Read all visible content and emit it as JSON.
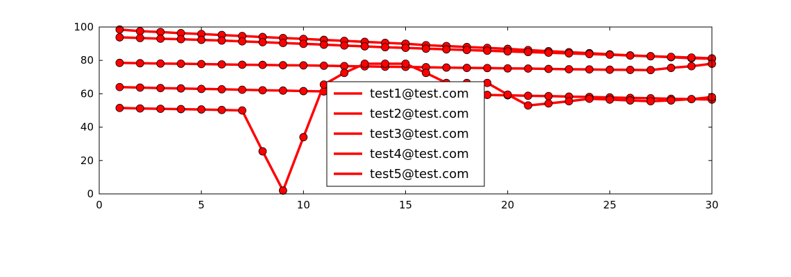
{
  "chart_data": {
    "type": "line",
    "title": "",
    "xlabel": "",
    "ylabel": "",
    "xlim": [
      0,
      30
    ],
    "ylim": [
      0,
      100
    ],
    "xticks": [
      0,
      5,
      10,
      15,
      20,
      25,
      30
    ],
    "yticks": [
      0,
      20,
      40,
      60,
      80,
      100
    ],
    "grid": false,
    "legend_position": "center",
    "line_color": "#ff0000",
    "marker_color": "#ff0000",
    "marker_edge_color": "#000000",
    "x": [
      1,
      2,
      3,
      4,
      5,
      6,
      7,
      8,
      9,
      10,
      11,
      12,
      13,
      14,
      15,
      16,
      17,
      18,
      19,
      20,
      21,
      22,
      23,
      24,
      25,
      26,
      27,
      28,
      29,
      30
    ],
    "series": [
      {
        "name": "test1@test.com",
        "values": [
          98.5,
          97.5,
          97,
          96.3,
          95.8,
          95.2,
          94.6,
          94,
          93.4,
          92.9,
          92.3,
          91.7,
          91.1,
          90.5,
          90,
          89.1,
          88.6,
          88,
          87.5,
          86.9,
          86.2,
          85.5,
          84.9,
          84.3,
          83.6,
          83,
          82.5,
          81.9,
          81.3,
          81
        ]
      },
      {
        "name": "test2@test.com",
        "values": [
          93.8,
          93.4,
          93,
          92.7,
          92.3,
          91.9,
          91.4,
          90.9,
          90.4,
          89.9,
          89.4,
          88.9,
          88.4,
          87.9,
          87.5,
          87,
          86.6,
          86.2,
          85.8,
          85.4,
          85,
          84.6,
          84.2,
          83.8,
          83.4,
          82.9,
          82.5,
          82.1,
          81.7,
          81.2
        ]
      },
      {
        "name": "test3@test.com",
        "values": [
          78.5,
          78.3,
          78.1,
          78,
          77.8,
          77.6,
          77.4,
          77.3,
          77.1,
          77,
          76.8,
          76.6,
          76.4,
          76.2,
          76.1,
          75.9,
          75.7,
          75.5,
          75.4,
          75.2,
          75.1,
          74.9,
          74.7,
          74.6,
          74.4,
          74.3,
          74.2,
          75.5,
          76.5,
          78
        ]
      },
      {
        "name": "test4@test.com",
        "values": [
          64,
          63.7,
          63.4,
          63.2,
          62.9,
          62.7,
          62.4,
          62.1,
          61.9,
          61.6,
          61.4,
          61.1,
          60.8,
          60.6,
          60.3,
          60.1,
          59.8,
          59.6,
          59.3,
          59.1,
          58.8,
          58.6,
          58.3,
          58.1,
          57.8,
          57.5,
          57.3,
          57,
          56.8,
          56.5
        ]
      },
      {
        "name": "test5@test.com",
        "values": [
          51.5,
          51.2,
          51,
          50.8,
          50.6,
          50.3,
          50,
          25.5,
          2,
          34,
          65.5,
          72.5,
          78,
          78,
          78,
          72.5,
          66.5,
          66.5,
          66.5,
          59.5,
          53,
          54.2,
          55.5,
          57,
          56.5,
          56,
          55.5,
          56,
          56.8,
          58
        ]
      }
    ]
  }
}
